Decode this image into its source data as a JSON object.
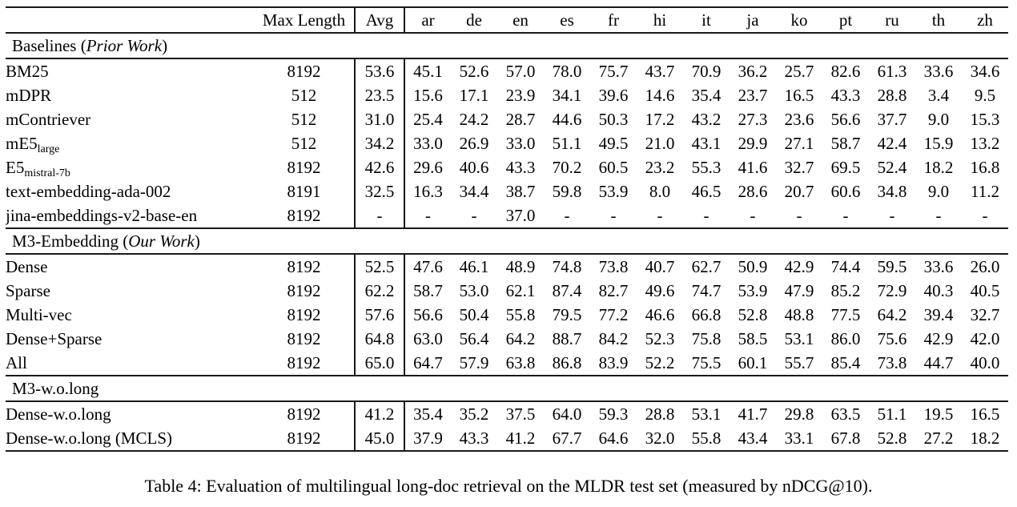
{
  "table": {
    "max_length_header": "Max Length",
    "avg_header": "Avg",
    "lang_headers": [
      "ar",
      "de",
      "en",
      "es",
      "fr",
      "hi",
      "it",
      "ja",
      "ko",
      "pt",
      "ru",
      "th",
      "zh"
    ],
    "sections": [
      {
        "title_pre": "Baselines (",
        "title_italic": "Prior Work",
        "title_post": ")",
        "rows": [
          {
            "model": "BM25",
            "sub": "",
            "max_length": "8192",
            "avg": "53.6",
            "avg_bold": false,
            "values": [
              "45.1",
              "52.6",
              "57.0",
              "78.0",
              "75.7",
              "43.7",
              "70.9",
              "36.2",
              "25.7",
              "82.6",
              "61.3",
              "33.6",
              "34.6"
            ],
            "bold": [
              false,
              false,
              false,
              false,
              false,
              false,
              false,
              false,
              false,
              false,
              false,
              false,
              false
            ]
          },
          {
            "model": "mDPR",
            "sub": "",
            "max_length": "512",
            "avg": "23.5",
            "avg_bold": false,
            "values": [
              "15.6",
              "17.1",
              "23.9",
              "34.1",
              "39.6",
              "14.6",
              "35.4",
              "23.7",
              "16.5",
              "43.3",
              "28.8",
              "3.4",
              "9.5"
            ],
            "bold": [
              false,
              false,
              false,
              false,
              false,
              false,
              false,
              false,
              false,
              false,
              false,
              false,
              false
            ]
          },
          {
            "model": "mContriever",
            "sub": "",
            "max_length": "512",
            "avg": "31.0",
            "avg_bold": false,
            "values": [
              "25.4",
              "24.2",
              "28.7",
              "44.6",
              "50.3",
              "17.2",
              "43.2",
              "27.3",
              "23.6",
              "56.6",
              "37.7",
              "9.0",
              "15.3"
            ],
            "bold": [
              false,
              false,
              false,
              false,
              false,
              false,
              false,
              false,
              false,
              false,
              false,
              false,
              false
            ]
          },
          {
            "model": "mE5",
            "sub": "large",
            "max_length": "512",
            "avg": "34.2",
            "avg_bold": false,
            "values": [
              "33.0",
              "26.9",
              "33.0",
              "51.1",
              "49.5",
              "21.0",
              "43.1",
              "29.9",
              "27.1",
              "58.7",
              "42.4",
              "15.9",
              "13.2"
            ],
            "bold": [
              false,
              false,
              false,
              false,
              false,
              false,
              false,
              false,
              false,
              false,
              false,
              false,
              false
            ]
          },
          {
            "model": "E5",
            "sub": "mistral-7b",
            "max_length": "8192",
            "avg": "42.6",
            "avg_bold": false,
            "values": [
              "29.6",
              "40.6",
              "43.3",
              "70.2",
              "60.5",
              "23.2",
              "55.3",
              "41.6",
              "32.7",
              "69.5",
              "52.4",
              "18.2",
              "16.8"
            ],
            "bold": [
              false,
              false,
              false,
              false,
              false,
              false,
              false,
              false,
              false,
              false,
              false,
              false,
              false
            ]
          },
          {
            "model": "text-embedding-ada-002",
            "sub": "",
            "max_length": "8191",
            "avg": "32.5",
            "avg_bold": false,
            "values": [
              "16.3",
              "34.4",
              "38.7",
              "59.8",
              "53.9",
              "8.0",
              "46.5",
              "28.6",
              "20.7",
              "60.6",
              "34.8",
              "9.0",
              "11.2"
            ],
            "bold": [
              false,
              false,
              false,
              false,
              false,
              false,
              false,
              false,
              false,
              false,
              false,
              false,
              false
            ]
          },
          {
            "model": "jina-embeddings-v2-base-en",
            "sub": "",
            "max_length": "8192",
            "avg": "-",
            "avg_bold": false,
            "values": [
              "-",
              "-",
              "37.0",
              "-",
              "-",
              "-",
              "-",
              "-",
              "-",
              "-",
              "-",
              "-",
              "-"
            ],
            "bold": [
              false,
              false,
              false,
              false,
              false,
              false,
              false,
              false,
              false,
              false,
              false,
              false,
              false
            ]
          }
        ]
      },
      {
        "title_pre": "M3-Embedding (",
        "title_italic": "Our Work",
        "title_post": ")",
        "rows": [
          {
            "model": "Dense",
            "sub": "",
            "max_length": "8192",
            "avg": "52.5",
            "avg_bold": false,
            "values": [
              "47.6",
              "46.1",
              "48.9",
              "74.8",
              "73.8",
              "40.7",
              "62.7",
              "50.9",
              "42.9",
              "74.4",
              "59.5",
              "33.6",
              "26.0"
            ],
            "bold": [
              false,
              false,
              false,
              false,
              false,
              false,
              false,
              false,
              false,
              false,
              false,
              false,
              false
            ]
          },
          {
            "model": "Sparse",
            "sub": "",
            "max_length": "8192",
            "avg": "62.2",
            "avg_bold": false,
            "values": [
              "58.7",
              "53.0",
              "62.1",
              "87.4",
              "82.7",
              "49.6",
              "74.7",
              "53.9",
              "47.9",
              "85.2",
              "72.9",
              "40.3",
              "40.5"
            ],
            "bold": [
              false,
              false,
              false,
              false,
              false,
              false,
              false,
              false,
              false,
              false,
              false,
              false,
              false
            ]
          },
          {
            "model": "Multi-vec",
            "sub": "",
            "max_length": "8192",
            "avg": "57.6",
            "avg_bold": false,
            "values": [
              "56.6",
              "50.4",
              "55.8",
              "79.5",
              "77.2",
              "46.6",
              "66.8",
              "52.8",
              "48.8",
              "77.5",
              "64.2",
              "39.4",
              "32.7"
            ],
            "bold": [
              false,
              false,
              false,
              false,
              false,
              false,
              false,
              false,
              false,
              false,
              false,
              false,
              false
            ]
          },
          {
            "model": "Dense+Sparse",
            "sub": "",
            "max_length": "8192",
            "avg": "64.8",
            "avg_bold": false,
            "values": [
              "63.0",
              "56.4",
              "64.2",
              "88.7",
              "84.2",
              "52.3",
              "75.8",
              "58.5",
              "53.1",
              "86.0",
              "75.6",
              "42.9",
              "42.0"
            ],
            "bold": [
              false,
              false,
              true,
              true,
              true,
              true,
              true,
              false,
              false,
              true,
              true,
              false,
              true
            ]
          },
          {
            "model": "All",
            "sub": "",
            "max_length": "8192",
            "avg": "65.0",
            "avg_bold": true,
            "values": [
              "64.7",
              "57.9",
              "63.8",
              "86.8",
              "83.9",
              "52.2",
              "75.5",
              "60.1",
              "55.7",
              "85.4",
              "73.8",
              "44.7",
              "40.0"
            ],
            "bold": [
              true,
              true,
              false,
              false,
              false,
              false,
              false,
              true,
              true,
              false,
              false,
              true,
              false
            ]
          }
        ]
      },
      {
        "title_pre": "M3-w.o.long",
        "title_italic": "",
        "title_post": "",
        "rows": [
          {
            "model": "Dense-w.o.long",
            "sub": "",
            "max_length": "8192",
            "avg": "41.2",
            "avg_bold": false,
            "values": [
              "35.4",
              "35.2",
              "37.5",
              "64.0",
              "59.3",
              "28.8",
              "53.1",
              "41.7",
              "29.8",
              "63.5",
              "51.1",
              "19.5",
              "16.5"
            ],
            "bold": [
              false,
              false,
              false,
              false,
              false,
              false,
              false,
              false,
              false,
              false,
              false,
              false,
              false
            ]
          },
          {
            "model": "Dense-w.o.long (MCLS)",
            "sub": "",
            "max_length": "8192",
            "avg": "45.0",
            "avg_bold": false,
            "values": [
              "37.9",
              "43.3",
              "41.2",
              "67.7",
              "64.6",
              "32.0",
              "55.8",
              "43.4",
              "33.1",
              "67.8",
              "52.8",
              "27.2",
              "18.2"
            ],
            "bold": [
              false,
              false,
              false,
              false,
              false,
              false,
              false,
              false,
              false,
              false,
              false,
              false,
              false
            ]
          }
        ]
      }
    ],
    "caption": "Table 4: Evaluation of multilingual long-doc retrieval on the MLDR test set (measured by nDCG@10)."
  }
}
